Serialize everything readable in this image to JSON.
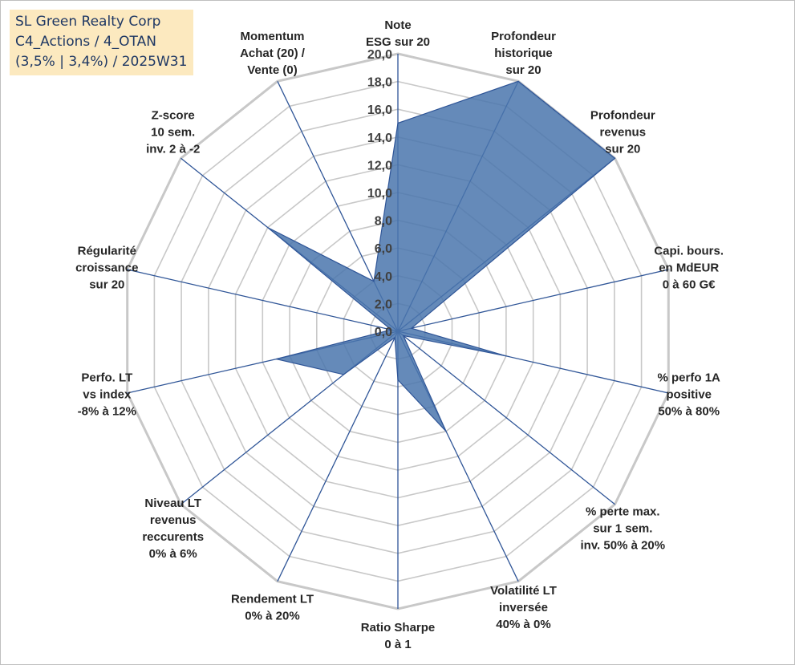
{
  "title_box": {
    "lines": [
      "SL Green Realty Corp",
      "C4_Actions / 4_OTAN",
      "(3,5% | 3,4%) / 2025W31"
    ]
  },
  "colors": {
    "ring": "#c8c8c8",
    "spoke": "#2f5597",
    "fill": "#4a76ad",
    "series_stroke": "#2f5597",
    "title_bg": "#fce9bf"
  },
  "chart_data": {
    "type": "radar",
    "range": [
      0,
      20
    ],
    "ticks": [
      "0,0",
      "2,0",
      "4,0",
      "6,0",
      "8,0",
      "10,0",
      "12,0",
      "14,0",
      "16,0",
      "18,0",
      "20,0"
    ],
    "grid": true,
    "legend": "none",
    "axes": [
      [
        "Note",
        "ESG sur 20"
      ],
      [
        "Profondeur",
        "historique",
        "sur 20"
      ],
      [
        "Profondeur",
        "revenus",
        "sur 20"
      ],
      [
        "Capi. bours.",
        "en MdEUR",
        "0 à 60 G€"
      ],
      [
        "% perfo 1A",
        "positive",
        "50% à 80%"
      ],
      [
        "% perte max.",
        "sur 1 sem.",
        "inv. 50% à 20%"
      ],
      [
        "Volatilité LT",
        "inversée",
        "40% à 0%"
      ],
      [
        "Ratio Sharpe",
        "0 à 1"
      ],
      [
        "Rendement LT",
        "0% à 20%"
      ],
      [
        "Niveau LT",
        "revenus",
        "reccurents",
        "0% à 6%"
      ],
      [
        "Perfo. LT",
        "vs index",
        "-8% à 12%"
      ],
      [
        "Régularité",
        "croissance",
        "sur 20"
      ],
      [
        "Z-score",
        "10 sem.",
        "inv. 2 à -2"
      ],
      [
        "Momentum",
        "Achat (20) /",
        "Vente (0)"
      ]
    ],
    "series": [
      {
        "values": [
          15.0,
          20.0,
          20.0,
          1.0,
          8.0,
          0.5,
          8.0,
          3.5,
          0.5,
          5.0,
          9.0,
          0.5,
          12.0,
          4.0
        ]
      }
    ]
  }
}
